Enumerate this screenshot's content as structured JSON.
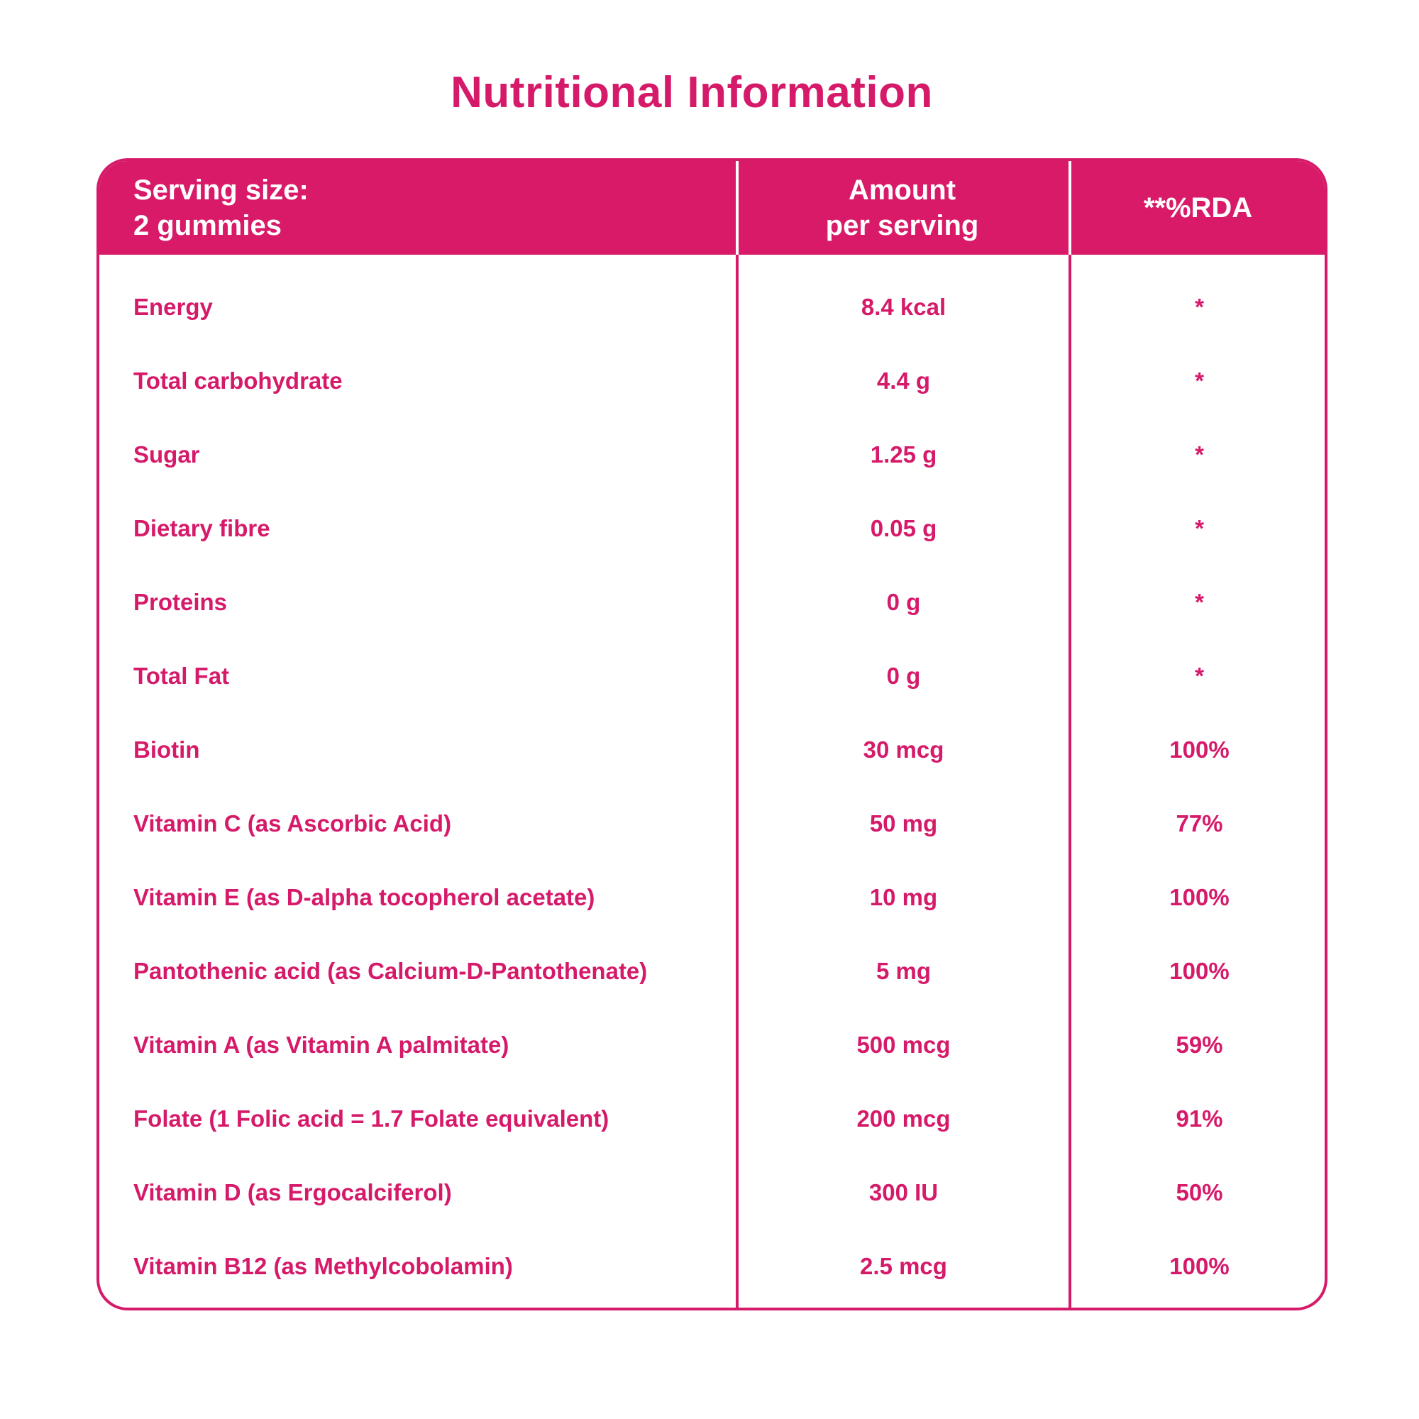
{
  "title": "Nutritional Information",
  "header": {
    "serving_line1": "Serving size:",
    "serving_line2": "2 gummies",
    "amount_line1": "Amount",
    "amount_line2": "per serving",
    "rda": "**%RDA"
  },
  "rows": [
    {
      "name": "Energy",
      "amount": "8.4 kcal",
      "rda": "*"
    },
    {
      "name": "Total carbohydrate",
      "amount": "4.4 g",
      "rda": "*"
    },
    {
      "name": "Sugar",
      "amount": "1.25 g",
      "rda": "*"
    },
    {
      "name": "Dietary fibre",
      "amount": "0.05 g",
      "rda": "*"
    },
    {
      "name": "Proteins",
      "amount": "0 g",
      "rda": "*"
    },
    {
      "name": "Total Fat",
      "amount": "0 g",
      "rda": "*"
    },
    {
      "name": "Biotin",
      "amount": "30 mcg",
      "rda": "100%"
    },
    {
      "name": "Vitamin C (as Ascorbic Acid)",
      "amount": "50 mg",
      "rda": "77%"
    },
    {
      "name": "Vitamin E (as D-alpha tocopherol acetate)",
      "amount": "10 mg",
      "rda": "100%"
    },
    {
      "name": "Pantothenic acid (as Calcium-D-Pantothenate)",
      "amount": "5 mg",
      "rda": "100%"
    },
    {
      "name": "Vitamin A (as Vitamin A palmitate)",
      "amount": "500 mcg",
      "rda": "59%"
    },
    {
      "name": "Folate (1 Folic acid = 1.7 Folate equivalent)",
      "amount": "200 mcg",
      "rda": "91%"
    },
    {
      "name": "Vitamin D (as Ergocalciferol)",
      "amount": "300 IU",
      "rda": "50%"
    },
    {
      "name": "Vitamin B12 (as Methylcobolamin)",
      "amount": "2.5 mcg",
      "rda": "100%"
    }
  ],
  "colors": {
    "accent": "#d81a68",
    "text": "#d61a6a",
    "background": "#ffffff"
  }
}
